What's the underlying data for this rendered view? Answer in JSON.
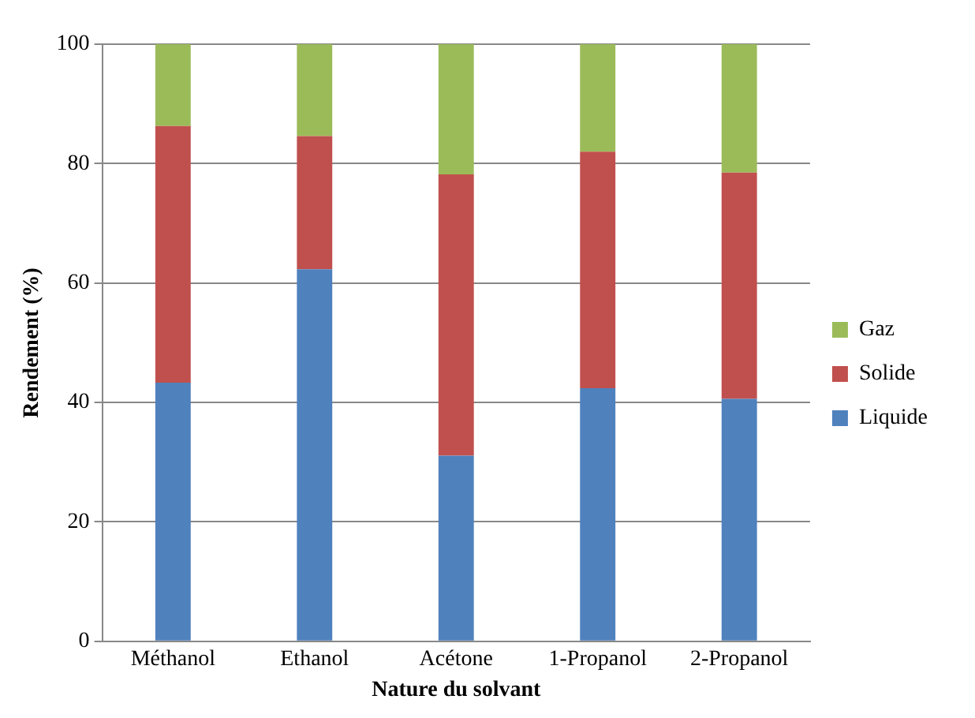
{
  "chart_data": {
    "type": "bar",
    "stacked": true,
    "xlabel": "Nature du solvant",
    "ylabel": "Rendement (%)",
    "categories": [
      "Méthanol",
      "Ethanol",
      "Acétone",
      "1-Propanol",
      "2-Propanol"
    ],
    "series": [
      {
        "name": "Liquide",
        "color": "#4f81bd",
        "values": [
          43.3,
          62.3,
          31.1,
          42.4,
          40.6
        ]
      },
      {
        "name": "Solide",
        "color": "#c0504d",
        "values": [
          43,
          22.3,
          47.1,
          39.6,
          37.9
        ]
      },
      {
        "name": "Gaz",
        "color": "#9bbb59",
        "values": [
          13.7,
          15.4,
          21.8,
          18,
          21.5
        ]
      }
    ],
    "ylim": [
      0,
      100
    ],
    "yticks": [
      0,
      20,
      40,
      60,
      80,
      100
    ],
    "grid": "y",
    "legend": "right"
  }
}
